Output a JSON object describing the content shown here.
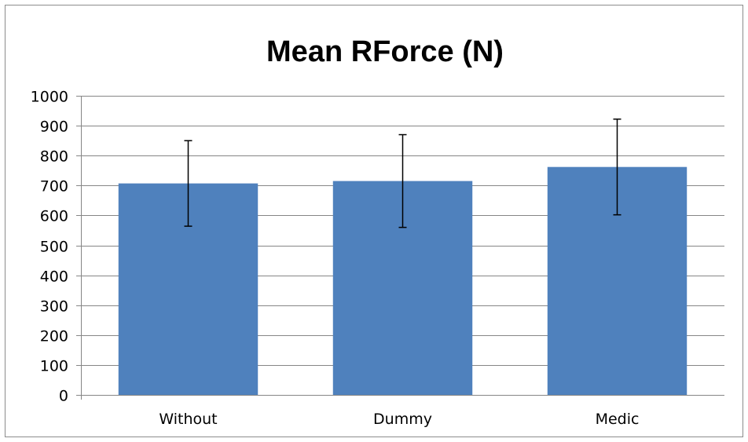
{
  "chart_data": {
    "type": "bar",
    "title": "Mean RForce (N)",
    "xlabel": "",
    "ylabel": "",
    "categories": [
      "Without",
      "Dummy",
      "Medic"
    ],
    "series": [
      {
        "values": [
          707,
          715,
          762
        ],
        "error": [
          143,
          155,
          160
        ],
        "color": "#4f81bd"
      }
    ],
    "ylim": [
      0,
      1000
    ],
    "yticks": [
      0,
      100,
      200,
      300,
      400,
      500,
      600,
      700,
      800,
      900,
      1000
    ],
    "grid": true,
    "legend": "none"
  }
}
